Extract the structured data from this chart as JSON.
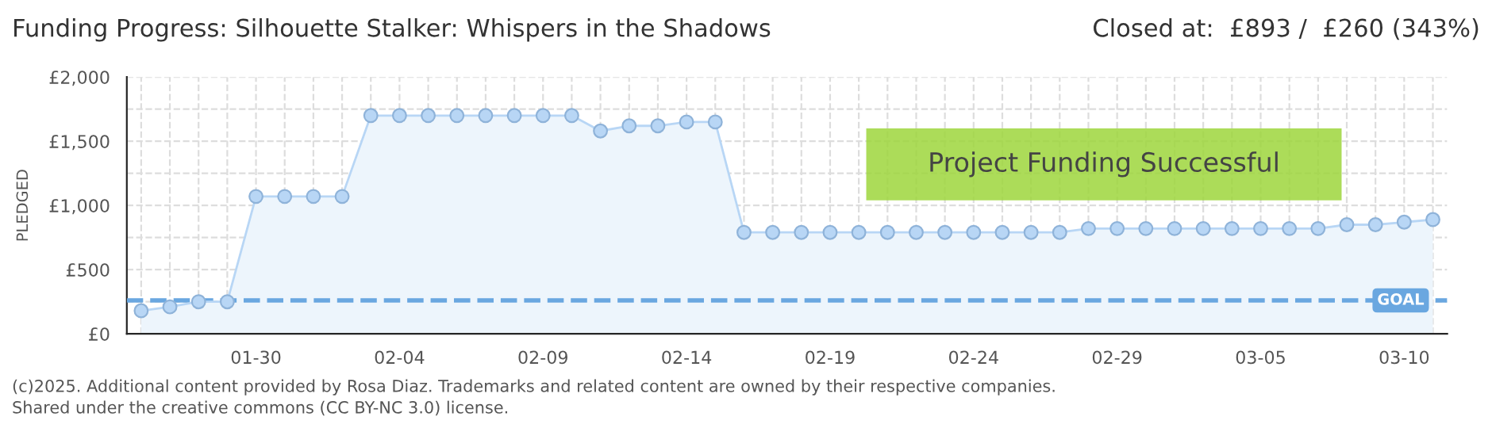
{
  "chart_data": {
    "type": "area",
    "title": "Funding Progress: Silhouette Stalker: Whispers in the Shadows",
    "subtitle": "Closed at:  £893 /  £260 (343%)",
    "ylabel": "PLEDGED",
    "categories": [
      null,
      null,
      null,
      null,
      "01-30",
      null,
      null,
      null,
      null,
      "02-04",
      null,
      null,
      null,
      null,
      "02-09",
      null,
      null,
      null,
      null,
      "02-14",
      null,
      null,
      null,
      null,
      "02-19",
      null,
      null,
      null,
      null,
      "02-24",
      null,
      null,
      null,
      null,
      "02-29",
      null,
      null,
      null,
      null,
      "03-05",
      null,
      null,
      null,
      null,
      "03-10",
      null
    ],
    "series": [
      {
        "color": "#b8d6f5",
        "values": [
          180,
          210,
          250,
          250,
          1070,
          1070,
          1070,
          1070,
          1700,
          1700,
          1700,
          1700,
          1700,
          1700,
          1700,
          1700,
          1580,
          1620,
          1620,
          1650,
          1650,
          790,
          790,
          790,
          790,
          790,
          790,
          790,
          790,
          790,
          790,
          790,
          790,
          820,
          820,
          820,
          820,
          820,
          820,
          820,
          820,
          820,
          850,
          850,
          870,
          890
        ]
      }
    ],
    "ylim": [
      0,
      2000
    ],
    "yticks": [
      {
        "value": 0,
        "label": "£0"
      },
      {
        "value": 250,
        "label": null
      },
      {
        "value": 500,
        "label": "£500"
      },
      {
        "value": 750,
        "label": null
      },
      {
        "value": 1000,
        "label": "£1,000"
      },
      {
        "value": 1250,
        "label": null
      },
      {
        "value": 1500,
        "label": "£1,500"
      },
      {
        "value": 1750,
        "label": null
      },
      {
        "value": 2000,
        "label": "£2,000"
      }
    ],
    "ref_lines": [
      {
        "axis": "y",
        "value": 260,
        "label": "GOAL",
        "color": "#6aa7e0",
        "line_style": "dashed"
      }
    ],
    "annotations": [
      "Project Funding Successful",
      "(c)2025. Additional content provided by Rosa Diaz. Trademarks and related content are owned by their respective companies.",
      "Shared under the creative commons (CC BY-NC 3.0) license."
    ],
    "grid": true,
    "marker": "circle",
    "line_style": "solid",
    "legend": false
  }
}
